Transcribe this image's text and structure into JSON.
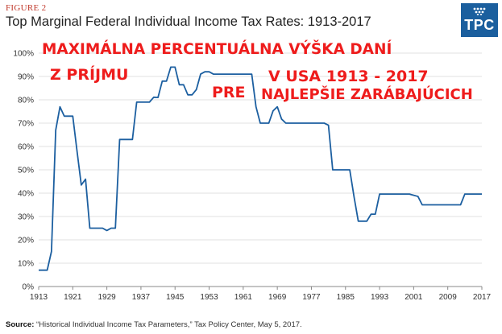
{
  "figure_label": "FIGURE 2",
  "title": "Top Marginal Federal Individual Income Tax Rates: 1913-2017",
  "logo_text": "TPC",
  "source_label": "Source:",
  "source_text": "“Historical Individual Income Tax Parameters,” Tax Policy Center, May 5, 2017.",
  "overlay_texts": {
    "line1": "MAXIMÁLNA PERCENTUÁLNA VÝŠKA DANÍ",
    "line2": "Z PRÍJMU",
    "line3": "PRE",
    "line4": "V USA 1913 - 2017",
    "line5": "NAJLEPŠIE ZARÁBAJÚCICH"
  },
  "colors": {
    "line": "#1c5fa0",
    "accent": "#c0392b",
    "overlay": "#ee1c1c",
    "logo": "#1b5f9e",
    "grid": "#d9d9d9"
  },
  "chart_data": {
    "type": "line",
    "title": "Top Marginal Federal Individual Income Tax Rates: 1913-2017",
    "xlabel": "",
    "ylabel": "",
    "xlim": [
      1913,
      2017
    ],
    "ylim": [
      0,
      100
    ],
    "x_ticks": [
      1913,
      1921,
      1929,
      1937,
      1945,
      1953,
      1961,
      1969,
      1977,
      1985,
      1993,
      2001,
      2009,
      2017
    ],
    "y_ticks": [
      "0%",
      "10%",
      "20%",
      "30%",
      "40%",
      "50%",
      "60%",
      "70%",
      "80%",
      "90%",
      "100%"
    ],
    "y_tick_values": [
      0,
      10,
      20,
      30,
      40,
      50,
      60,
      70,
      80,
      90,
      100
    ],
    "grid": "horizontal",
    "series": [
      {
        "x": [
          1913,
          1914,
          1915,
          1916,
          1917,
          1918,
          1919,
          1920,
          1921,
          1922,
          1923,
          1924,
          1925,
          1926,
          1927,
          1928,
          1929,
          1930,
          1931,
          1932,
          1933,
          1934,
          1935,
          1936,
          1937,
          1938,
          1939,
          1940,
          1941,
          1942,
          1943,
          1944,
          1945,
          1946,
          1947,
          1948,
          1949,
          1950,
          1951,
          1952,
          1953,
          1954,
          1955,
          1956,
          1957,
          1958,
          1959,
          1960,
          1961,
          1962,
          1963,
          1964,
          1965,
          1966,
          1967,
          1968,
          1969,
          1970,
          1971,
          1972,
          1973,
          1974,
          1975,
          1976,
          1977,
          1978,
          1979,
          1980,
          1981,
          1982,
          1983,
          1984,
          1985,
          1986,
          1987,
          1988,
          1989,
          1990,
          1991,
          1992,
          1993,
          1994,
          1995,
          1996,
          1997,
          1998,
          1999,
          2000,
          2001,
          2002,
          2003,
          2004,
          2005,
          2006,
          2007,
          2008,
          2009,
          2010,
          2011,
          2012,
          2013,
          2014,
          2015,
          2016,
          2017
        ],
        "values": [
          7,
          7,
          7,
          15,
          67,
          77,
          73,
          73,
          73,
          58,
          43.5,
          46,
          25,
          25,
          25,
          25,
          24,
          25,
          25,
          63,
          63,
          63,
          63,
          79,
          79,
          79,
          79,
          81.1,
          81,
          88,
          88,
          94,
          94,
          86.45,
          86.45,
          82.13,
          82.13,
          84.36,
          91,
          92,
          92,
          91,
          91,
          91,
          91,
          91,
          91,
          91,
          91,
          91,
          91,
          77,
          70,
          70,
          70,
          75.25,
          77,
          71.75,
          70,
          70,
          70,
          70,
          70,
          70,
          70,
          70,
          70,
          70,
          69.13,
          50,
          50,
          50,
          50,
          50,
          38.5,
          28,
          28,
          28,
          31,
          31,
          39.6,
          39.6,
          39.6,
          39.6,
          39.6,
          39.6,
          39.6,
          39.6,
          39.1,
          38.6,
          35,
          35,
          35,
          35,
          35,
          35,
          35,
          35,
          35,
          35,
          39.6,
          39.6,
          39.6,
          39.6,
          39.6
        ]
      }
    ]
  }
}
